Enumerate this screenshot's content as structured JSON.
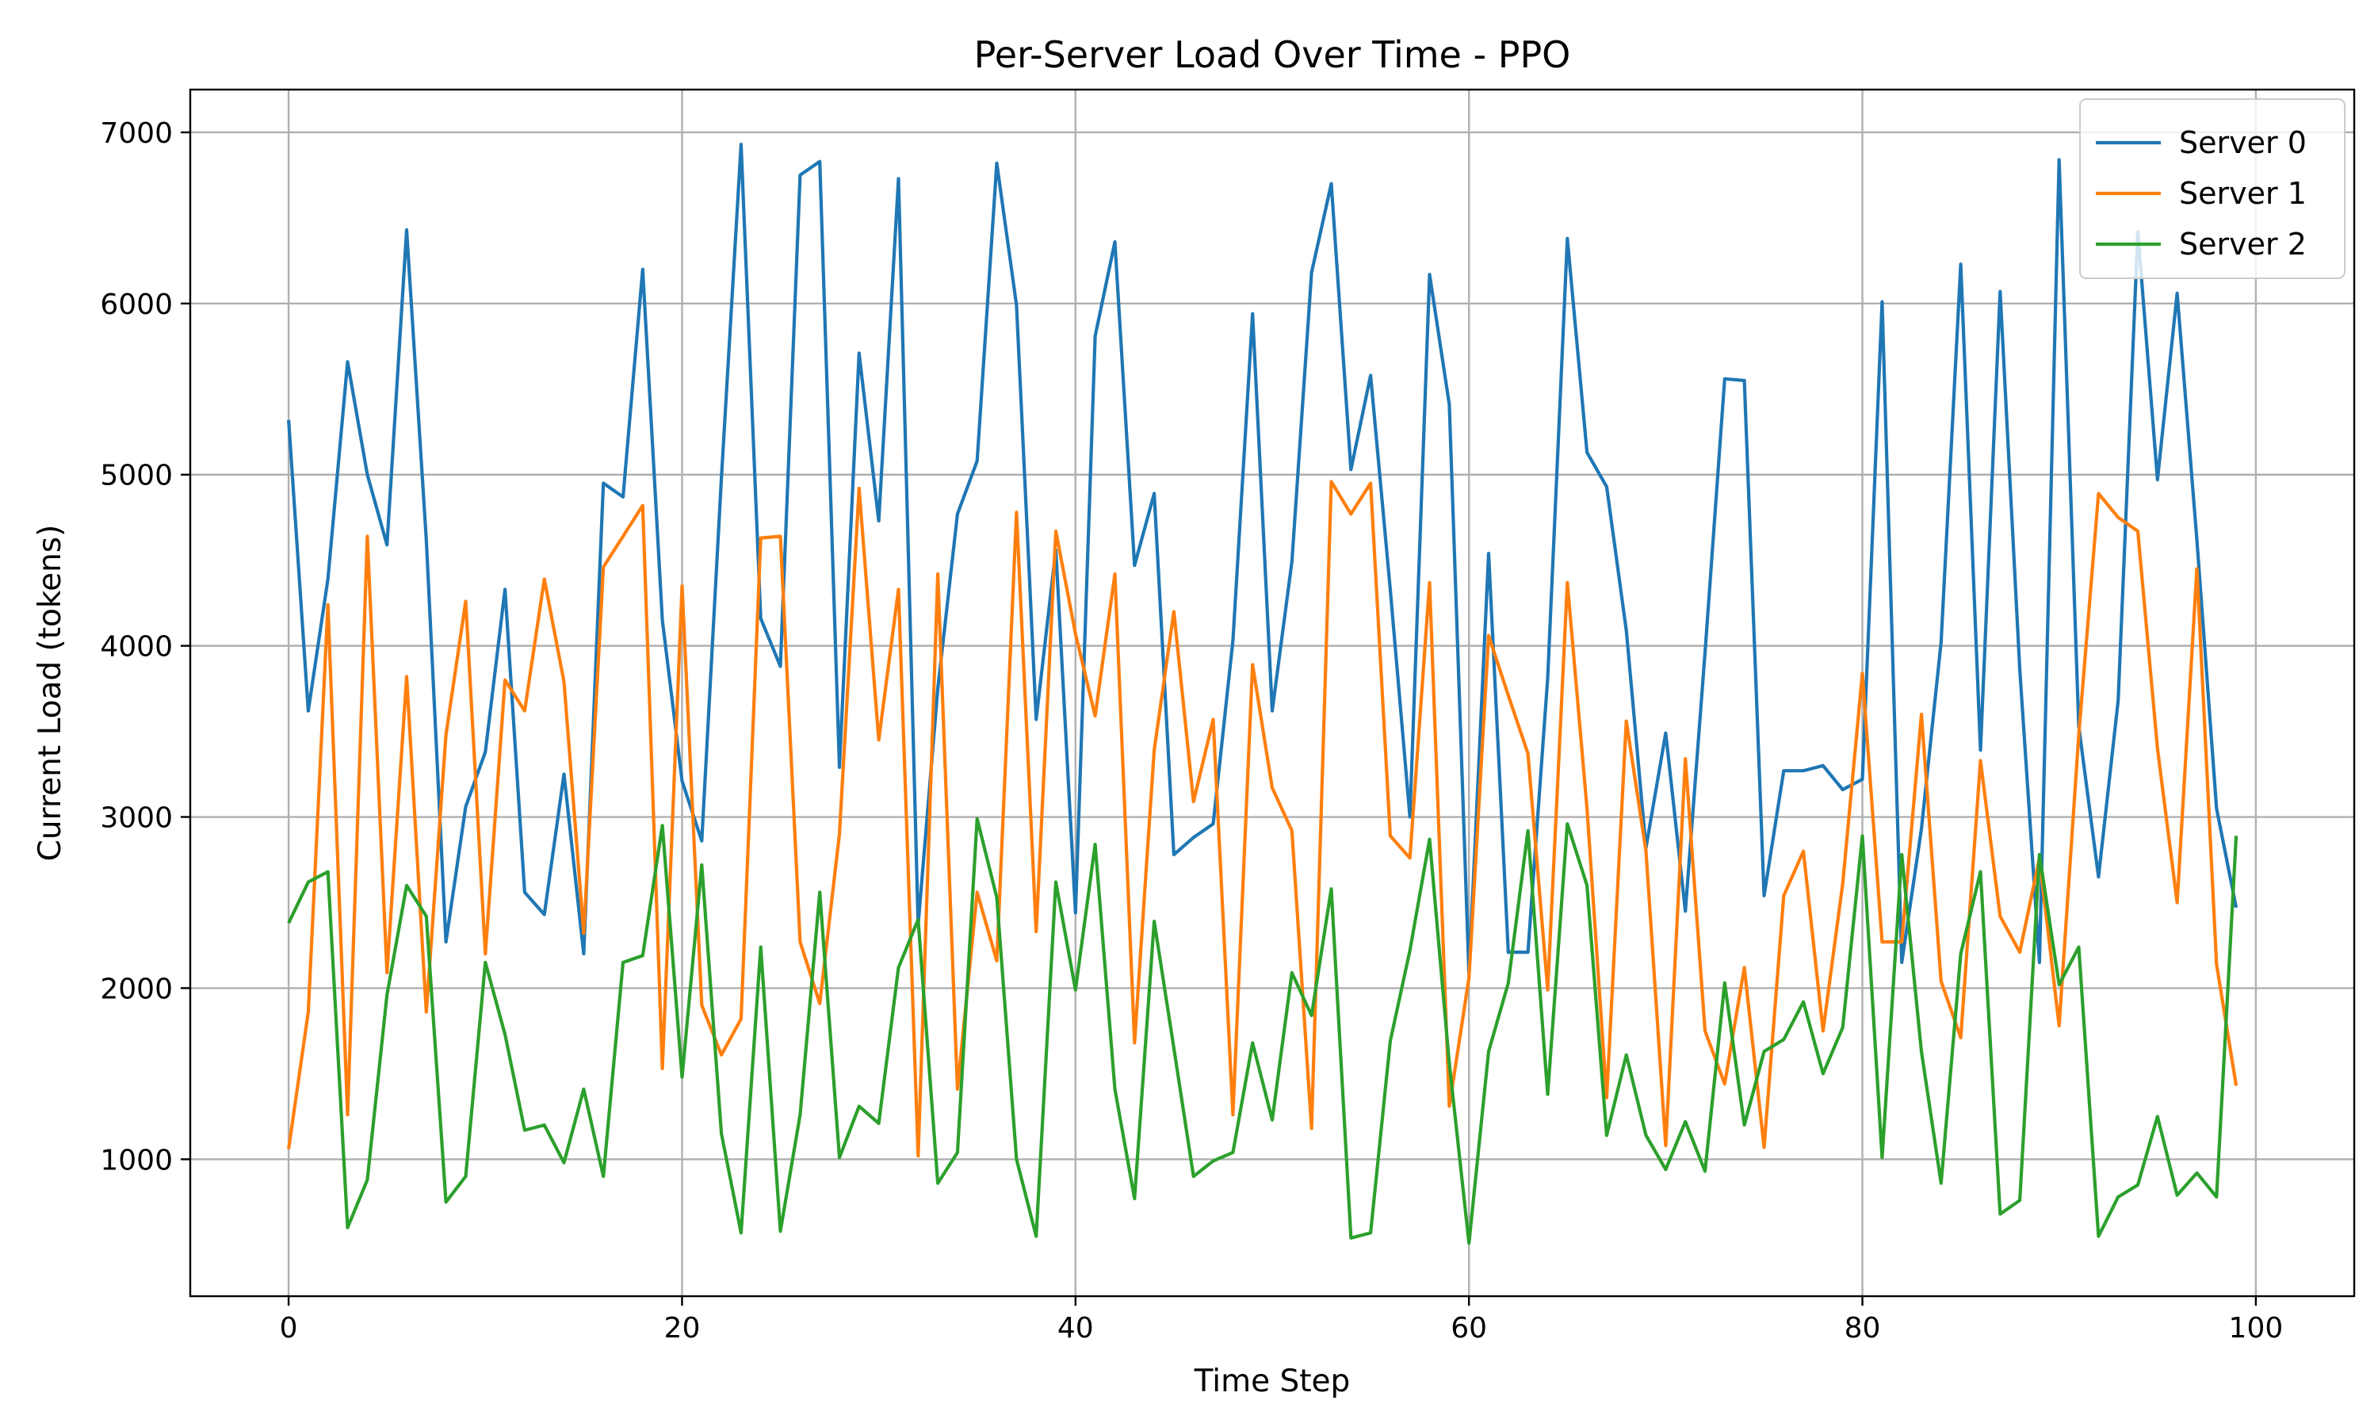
{
  "chart_data": {
    "type": "line",
    "title": "Per-Server Load Over Time - PPO",
    "xlabel": "Time Step",
    "ylabel": "Current Load (tokens)",
    "xlim": [
      -5,
      105
    ],
    "ylim": [
      200,
      7250
    ],
    "xticks": [
      0,
      20,
      40,
      60,
      80,
      100
    ],
    "yticks": [
      1000,
      2000,
      3000,
      4000,
      5000,
      6000,
      7000
    ],
    "grid": true,
    "legend_position": "top-right",
    "series": [
      {
        "name": "Server 0",
        "color": "#1f77b4",
        "values": [
          5320,
          3620,
          4390,
          5660,
          5000,
          4590,
          6430,
          4620,
          2270,
          3060,
          3380,
          4330,
          2560,
          2430,
          3250,
          2200,
          4950,
          4870,
          6200,
          4150,
          3210,
          2860,
          4980,
          6930,
          4160,
          3880,
          6750,
          6830,
          3290,
          5710,
          4730,
          6730,
          2370,
          3750,
          4770,
          5080,
          6820,
          5990,
          3570,
          4560,
          2440,
          5810,
          6360,
          4470,
          4890,
          2780,
          2880,
          2960,
          4030,
          5940,
          3620,
          4490,
          6180,
          6700,
          5030,
          5580,
          4330,
          3000,
          6170,
          5410,
          2080,
          4540,
          2210,
          2210,
          3810,
          6380,
          5130,
          4930,
          4090,
          2820,
          3490,
          2450,
          3960,
          5560,
          5550,
          2540,
          3270,
          3270,
          3300,
          3160,
          3220,
          6010,
          2150,
          2930,
          4020,
          6230,
          3390,
          6070,
          3860,
          2150,
          6840,
          3530,
          2650,
          3680,
          6420,
          4970,
          6060,
          4620,
          3050,
          2470
        ]
      },
      {
        "name": "Server 1",
        "color": "#ff7f0e",
        "values": [
          1060,
          1860,
          4240,
          1260,
          4640,
          2090,
          3820,
          1860,
          3480,
          4260,
          2200,
          3800,
          3620,
          4390,
          3790,
          2320,
          4460,
          4640,
          4820,
          1530,
          4350,
          1900,
          1610,
          1820,
          4630,
          4640,
          2270,
          1910,
          2900,
          4920,
          3450,
          4330,
          1020,
          4420,
          1410,
          2560,
          2160,
          4780,
          2330,
          4670,
          4070,
          3590,
          4420,
          1680,
          3390,
          4200,
          3090,
          3570,
          1260,
          3890,
          3170,
          2920,
          1180,
          4960,
          4770,
          4950,
          2890,
          2760,
          4370,
          1310,
          2060,
          4060,
          3710,
          3370,
          1990,
          4370,
          3050,
          1360,
          3560,
          2800,
          1080,
          3340,
          1750,
          1440,
          2120,
          1070,
          2540,
          2800,
          1750,
          2610,
          3840,
          2270,
          2270,
          3600,
          2040,
          1710,
          3330,
          2420,
          2210,
          2760,
          1780,
          3480,
          4890,
          4750,
          4670,
          3400,
          2500,
          4450,
          2140,
          1430
        ]
      },
      {
        "name": "Server 2",
        "color": "#2ca02c",
        "values": [
          2380,
          2620,
          2680,
          600,
          880,
          1960,
          2600,
          2420,
          750,
          900,
          2150,
          1730,
          1170,
          1200,
          980,
          1410,
          900,
          2150,
          2190,
          2950,
          1480,
          2720,
          1150,
          570,
          2240,
          580,
          1260,
          2560,
          1010,
          1310,
          1210,
          2120,
          2400,
          860,
          1040,
          2990,
          2530,
          1000,
          550,
          2620,
          1990,
          2840,
          1410,
          770,
          2390,
          1650,
          900,
          990,
          1040,
          1680,
          1230,
          2090,
          1840,
          2580,
          540,
          570,
          1690,
          2220,
          2870,
          1560,
          510,
          1630,
          2030,
          2920,
          1380,
          2960,
          2600,
          1140,
          1610,
          1140,
          940,
          1220,
          930,
          2030,
          1200,
          1630,
          1700,
          1920,
          1500,
          1770,
          2890,
          1010,
          2780,
          1630,
          860,
          2200,
          2680,
          680,
          760,
          2780,
          2020,
          2240,
          550,
          780,
          850,
          1250,
          790,
          920,
          780,
          2890
        ]
      }
    ]
  }
}
